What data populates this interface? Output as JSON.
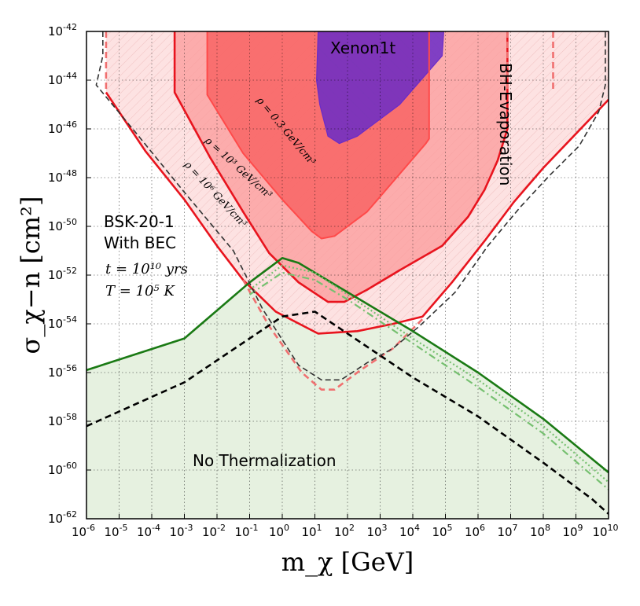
{
  "chart_data": {
    "type": "line",
    "xlabel": "m_χ [GeV]",
    "ylabel": "σ_χ−n [cm²]",
    "xscale": "log",
    "yscale": "log",
    "xlim_exponent": [
      -6,
      10
    ],
    "ylim_exponent": [
      -62,
      -42
    ],
    "grid": true,
    "x_tick_exponents": [
      -6,
      -5,
      -4,
      -3,
      -2,
      -1,
      0,
      1,
      2,
      3,
      4,
      5,
      6,
      7,
      8,
      9,
      10
    ],
    "y_tick_exponents": [
      -62,
      -60,
      -58,
      -56,
      -54,
      -52,
      -50,
      -48,
      -46,
      -44,
      -42
    ],
    "annotations": {
      "xenon": "Xenon1t",
      "bh": "BH-Evaporation",
      "model_line1": "BSK-20-1",
      "model_line2": "With BEC",
      "t_label": "t = 10¹⁰ yrs",
      "T_label": "T = 10⁵ K",
      "no_therm": "No Thermalization",
      "rho_03": "ρ = 0.3 GeV/cm³",
      "rho_1e3": "ρ = 10³ GeV/cm³",
      "rho_1e6": "ρ = 10⁶ GeV/cm³"
    },
    "series": [
      {
        "key": "xenon",
        "color": "#6a2cc8",
        "fill": true,
        "points": [
          [
            1.1,
            -42
          ],
          [
            1.05,
            -44
          ],
          [
            1.15,
            -45
          ],
          [
            1.4,
            -46.3
          ],
          [
            1.75,
            -46.6
          ],
          [
            2.3,
            -46.3
          ],
          [
            3.6,
            -45
          ],
          [
            4.9,
            -43
          ],
          [
            4.95,
            -42
          ]
        ]
      },
      {
        "key": "rho_03",
        "color": "#ff4a4a",
        "fill": true,
        "points": [
          [
            -2.3,
            -42
          ],
          [
            -2.3,
            -44.6
          ],
          [
            -1.2,
            -47
          ],
          [
            0,
            -48.9
          ],
          [
            0.9,
            -50.2
          ],
          [
            1.2,
            -50.5
          ],
          [
            1.6,
            -50.4
          ],
          [
            2.6,
            -49.4
          ],
          [
            3.5,
            -48
          ],
          [
            4.4,
            -46.6
          ],
          [
            4.5,
            -46.4
          ],
          [
            4.5,
            -42
          ]
        ]
      },
      {
        "key": "rho_1e3",
        "color": "#e8141e",
        "points": [
          [
            -3.3,
            -42
          ],
          [
            -3.3,
            -44.5
          ],
          [
            -2.2,
            -47.2
          ],
          [
            -1.2,
            -49.4
          ],
          [
            -0.4,
            -51.1
          ],
          [
            0.5,
            -52.3
          ],
          [
            1.4,
            -53.1
          ],
          [
            1.9,
            -53.1
          ],
          [
            2.6,
            -52.6
          ],
          [
            3.6,
            -51.8
          ],
          [
            4.9,
            -50.8
          ],
          [
            5.7,
            -49.6
          ],
          [
            6.2,
            -48.5
          ],
          [
            6.6,
            -47.3
          ],
          [
            6.9,
            -46
          ],
          [
            6.9,
            -42
          ]
        ]
      },
      {
        "key": "rho_1e6",
        "color": "#e8141e",
        "points": [
          [
            -5.4,
            -44.5
          ],
          [
            -4.2,
            -46.9
          ],
          [
            -3,
            -48.9
          ],
          [
            -2,
            -50.8
          ],
          [
            -1.2,
            -52.2
          ],
          [
            -0.2,
            -53.5
          ],
          [
            1.1,
            -54.4
          ],
          [
            2.3,
            -54.3
          ],
          [
            3.4,
            -54
          ],
          [
            4.3,
            -53.7
          ],
          [
            5.2,
            -52.3
          ],
          [
            6.2,
            -50.6
          ],
          [
            7.1,
            -49
          ],
          [
            8,
            -47.6
          ],
          [
            9,
            -46.2
          ],
          [
            10,
            -44.8
          ]
        ]
      },
      {
        "key": "rho_1e6_dash",
        "color": "#f07070",
        "points": [
          [
            -5.4,
            -42
          ],
          [
            -5.4,
            -44.5
          ]
        ]
      },
      {
        "key": "rho_3_dash",
        "color": "#f07070",
        "points": [
          [
            -1.2,
            -52.2
          ],
          [
            -0.4,
            -54.1
          ],
          [
            0.6,
            -56
          ],
          [
            1.2,
            -56.7
          ],
          [
            1.6,
            -56.7
          ],
          [
            2.4,
            -55.9
          ],
          [
            3.4,
            -55
          ],
          [
            4.3,
            -53.8
          ]
        ]
      },
      {
        "key": "rho_1e6_right",
        "color": "#f07070",
        "points": [
          [
            8.3,
            -42
          ],
          [
            8.3,
            -44.5
          ]
        ]
      },
      {
        "key": "rho_1e3_right",
        "color": "#f07070",
        "points": [
          [
            6.9,
            -42
          ],
          [
            6.9,
            -44.5
          ]
        ]
      },
      {
        "key": "green_no_therm",
        "color": "#1a7a14",
        "points": [
          [
            -6,
            -55.9
          ],
          [
            -3,
            -54.6
          ],
          [
            -1,
            -52.3
          ],
          [
            0,
            -51.3
          ],
          [
            0.5,
            -51.5
          ],
          [
            2,
            -52.7
          ],
          [
            4,
            -54.3
          ],
          [
            6,
            -56
          ],
          [
            8,
            -57.9
          ],
          [
            10,
            -60.1
          ]
        ]
      },
      {
        "key": "green_dotted",
        "color": "#76c070",
        "points": [
          [
            -1,
            -52.6
          ],
          [
            0,
            -51.6
          ],
          [
            1,
            -51.9
          ],
          [
            2,
            -52.8
          ],
          [
            4,
            -54.6
          ],
          [
            6,
            -56.3
          ],
          [
            8,
            -58.2
          ],
          [
            10,
            -60.5
          ]
        ]
      },
      {
        "key": "green_dashdot",
        "color": "#76c070",
        "points": [
          [
            -1,
            -52.8
          ],
          [
            0,
            -51.9
          ],
          [
            1,
            -52.2
          ],
          [
            2,
            -53
          ],
          [
            4,
            -54.8
          ],
          [
            6,
            -56.6
          ],
          [
            8,
            -58.5
          ],
          [
            10,
            -60.8
          ]
        ]
      },
      {
        "key": "black_dashed_bottom",
        "color": "#000000",
        "points": [
          [
            -6,
            -58.2
          ],
          [
            -3,
            -56.4
          ],
          [
            -1,
            -54.6
          ],
          [
            0,
            -53.7
          ],
          [
            1,
            -53.5
          ],
          [
            2,
            -54.4
          ],
          [
            4,
            -56.2
          ],
          [
            6,
            -57.8
          ],
          [
            8,
            -59.7
          ],
          [
            9.5,
            -61.2
          ],
          [
            10,
            -61.8
          ]
        ]
      },
      {
        "key": "black_dashed_left",
        "color": "#333333",
        "points": [
          [
            -5.5,
            -42
          ],
          [
            -5.5,
            -43
          ],
          [
            -5.7,
            -44.2
          ],
          [
            -4.4,
            -46.3
          ],
          [
            -3,
            -48.6
          ],
          [
            -1.5,
            -51
          ],
          [
            -0.6,
            -53.4
          ],
          [
            0.5,
            -55.7
          ],
          [
            1.2,
            -56.3
          ],
          [
            1.8,
            -56.3
          ],
          [
            2.6,
            -55.6
          ],
          [
            3.4,
            -55
          ],
          [
            4.2,
            -54.1
          ],
          [
            5.3,
            -52.7
          ],
          [
            6.3,
            -50.8
          ],
          [
            7.3,
            -49.2
          ],
          [
            8.2,
            -47.9
          ],
          [
            9.1,
            -46.7
          ],
          [
            9.7,
            -45.3
          ],
          [
            9.9,
            -44.2
          ],
          [
            9.9,
            -42
          ]
        ]
      }
    ]
  }
}
